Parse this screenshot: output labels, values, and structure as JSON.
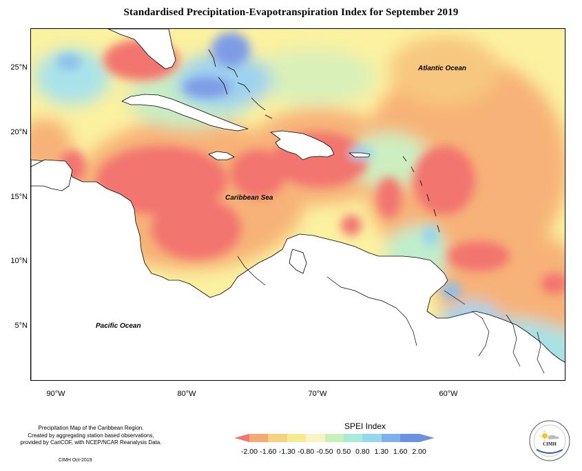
{
  "title": "Standardised Precipitation-Evapotranspiration Index for September 2019",
  "map": {
    "latitude_labels": [
      "25°N",
      "20°N",
      "15°N",
      "10°N",
      "5°N"
    ],
    "longitude_labels": [
      "90°W",
      "80°W",
      "70°W",
      "60°W"
    ],
    "ocean_labels": {
      "atlantic": "Atlantic Ocean",
      "caribbean": "Caribbean Sea",
      "pacific": "Pacific Ocean"
    }
  },
  "legend": {
    "title": "SPEI Index",
    "ticks": [
      "-2.00",
      "-1.60",
      "-1.30",
      "-0.80",
      "-0.50",
      "0.50",
      "0.80",
      "1.30",
      "1.60",
      "2.00"
    ],
    "colors": [
      "#f2786d",
      "#f5a878",
      "#f6d17e",
      "#f4ea91",
      "#f6f4c0",
      "#c9f0bc",
      "#a6ecd8",
      "#95d7ef",
      "#7fb0ec",
      "#6b91e3"
    ]
  },
  "credits": {
    "line1": "Precipitation Map of the Caribbean Region.",
    "line2": "Created by aggregating station based observations,",
    "line3": "provided by CariCOF, with NCEP/NCAR Reanalysis Data.",
    "date": "CIMH Oct-2019"
  },
  "logo": {
    "text": "CIMH",
    "icon": "cimh-logo-icon"
  }
}
